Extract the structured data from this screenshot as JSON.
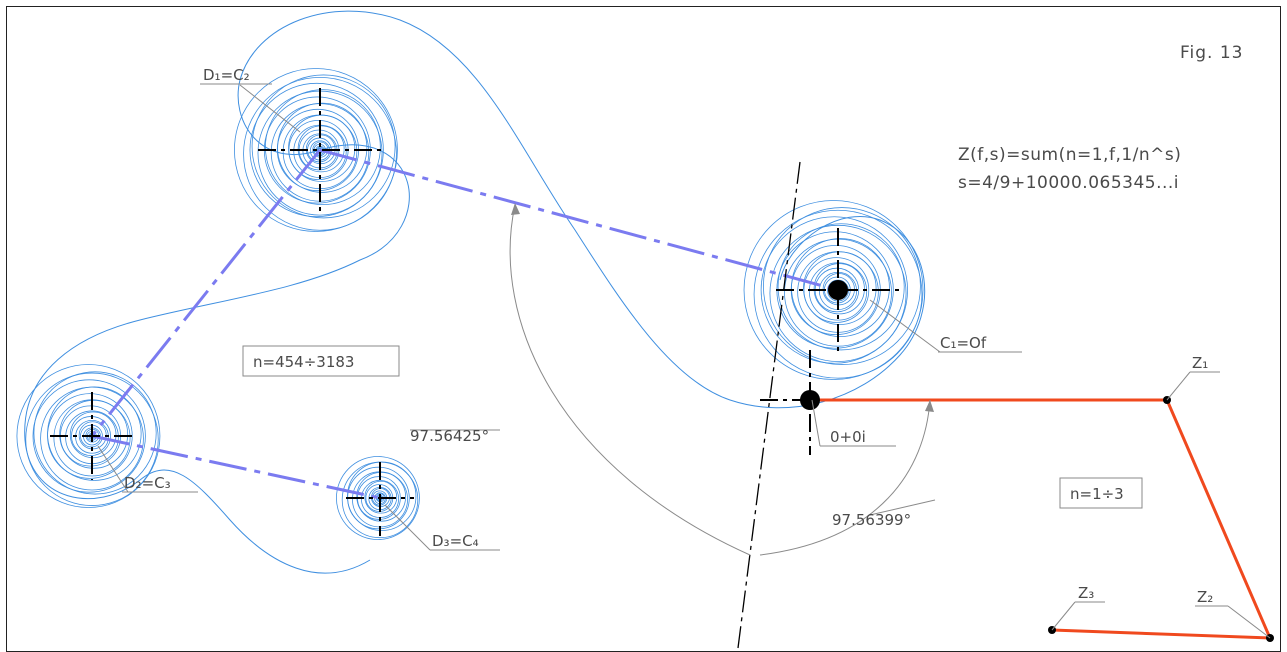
{
  "figure": {
    "label": "Fig. 13",
    "formula_line1": "Z(f,s)=sum(n=1,f,1/n^s)",
    "formula_line2": "s=4/9+10000.065345...i"
  },
  "boxes": {
    "range_large": "n=454÷3183",
    "range_small": "n=1÷3"
  },
  "points": {
    "d1": "D₁=C₂",
    "d2": "D₂=C₃",
    "d3": "D₃=C₄",
    "c1": "C₁=Of",
    "origin": "0+0i",
    "z1": "Z₁",
    "z2": "Z₂",
    "z3": "Z₃"
  },
  "angles": {
    "outer": "97.56425°",
    "inner": "97.56399°"
  },
  "colors": {
    "spiral": "#3f8fe0",
    "dashed_link": "#7b7bf0",
    "polyline": "#f0491e",
    "centerline": "#000000",
    "dimension": "#8a8a8a",
    "text": "#4a4a4a"
  }
}
